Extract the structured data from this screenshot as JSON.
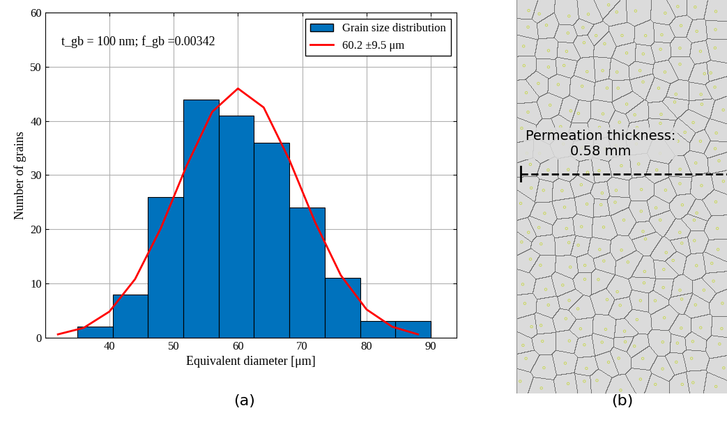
{
  "chart_data": {
    "type": "histogram",
    "xlabel": "Equivalent diameter [μm]",
    "ylabel": "Number of grains",
    "annotations": [
      "t_gb = 100 nm; f_gb =0.00342"
    ],
    "panel_label": "(a)",
    "bins": [
      35,
      40.5,
      46,
      51.5,
      57,
      62.5,
      68,
      73.5,
      79,
      84.5,
      90
    ],
    "series": [
      {
        "name": "Grain size distribution",
        "type": "bar",
        "color": "#0072bd",
        "values": [
          2,
          8,
          26,
          44,
          41,
          36,
          24,
          11,
          3,
          3
        ]
      },
      {
        "name": "60.2 ±9.5 μm",
        "type": "line",
        "color": "#ff0000",
        "x": [
          32,
          36,
          40,
          44,
          48,
          52,
          56,
          60,
          64,
          68,
          72,
          76,
          80,
          84,
          88
        ],
        "values": [
          0.6,
          1.8,
          4.8,
          10.8,
          20.2,
          31.7,
          41.7,
          46.0,
          42.5,
          32.8,
          21.3,
          11.5,
          5.2,
          2.0,
          0.6
        ]
      }
    ],
    "xlim": [
      30,
      94
    ],
    "xticks": [
      40,
      50,
      60,
      70,
      80,
      90
    ],
    "ylim": [
      0,
      60
    ],
    "yticks": [
      0,
      10,
      20,
      30,
      40,
      50,
      60
    ],
    "grid": true,
    "legend": "upper right"
  },
  "diagram": {
    "label": "(b)",
    "annotation": "Permeation thickness:\n0.58 mm"
  }
}
